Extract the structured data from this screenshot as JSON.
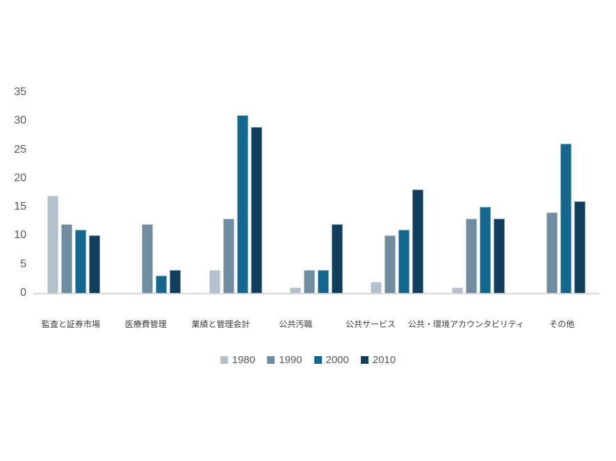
{
  "chart_data": {
    "type": "bar",
    "title": "",
    "xlabel": "",
    "ylabel": "",
    "categories": [
      "監査と証券市場",
      "医療費管理",
      "業績と管理会計",
      "公共汚職",
      "公共サービス",
      "公共・環境アカウンタビリティ",
      "その他"
    ],
    "series": [
      {
        "name": "1980",
        "color": "#b4c1cc",
        "values": [
          17,
          0,
          4,
          1,
          2,
          1,
          0
        ]
      },
      {
        "name": "1990",
        "color": "#6f8ca1",
        "values": [
          12,
          12,
          13,
          4,
          10,
          13,
          14
        ]
      },
      {
        "name": "2000",
        "color": "#14678f",
        "values": [
          11,
          3,
          31,
          4,
          11,
          15,
          26
        ]
      },
      {
        "name": "2010",
        "color": "#123e5d",
        "values": [
          10,
          4,
          29,
          12,
          18,
          13,
          16
        ]
      }
    ],
    "ylim": [
      0,
      35
    ],
    "yticks": [
      0,
      5,
      10,
      15,
      20,
      25,
      30,
      35
    ],
    "grid": false,
    "legend_position": "bottom",
    "axis_line_color": "#d6d6d6",
    "y_tick_color": "#595959",
    "x_tick_color": "#3d3d3d",
    "background_color": "#ffffff"
  }
}
